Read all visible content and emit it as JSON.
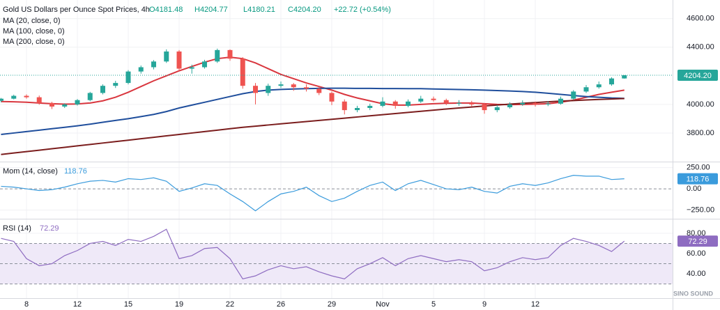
{
  "chart_data": [
    {
      "type": "candlestick",
      "title": "Gold US Dollars per Ounce Spot Prices, 4h",
      "ohlc_legend": [
        "O4181.48",
        "H4204.77",
        "L4180.21",
        "C4204.20",
        "+22.72 (+0.54%)"
      ],
      "categories": [
        null,
        null,
        "8",
        null,
        null,
        null,
        "12",
        null,
        null,
        null,
        "15",
        null,
        null,
        null,
        "19",
        null,
        null,
        null,
        "22",
        null,
        null,
        null,
        "26",
        null,
        null,
        null,
        "29",
        null,
        null,
        null,
        "Nov",
        null,
        null,
        null,
        "5",
        null,
        null,
        null,
        "9",
        null,
        null,
        null,
        "12",
        null,
        null,
        null,
        null,
        null,
        null,
        null
      ],
      "open": [
        4025,
        4040,
        4060,
        4050,
        4010,
        3985,
        4000,
        4030,
        4080,
        4130,
        4150,
        4230,
        4260,
        4300,
        4370,
        4250,
        4260,
        4300,
        4380,
        4320,
        4130,
        4080,
        4130,
        4140,
        4120,
        4110,
        4080,
        4020,
        3960,
        3975,
        3990,
        4020,
        3990,
        4020,
        4040,
        4030,
        4010,
        4010,
        4000,
        3960,
        3980,
        4000,
        4010,
        4000,
        4005,
        4040,
        4090,
        4120,
        4140,
        4181.48
      ],
      "high": [
        4045,
        4068,
        4070,
        4062,
        4018,
        4008,
        4038,
        4088,
        4140,
        4165,
        4240,
        4272,
        4310,
        4385,
        4380,
        4278,
        4312,
        4390,
        4385,
        4330,
        4150,
        4145,
        4160,
        4150,
        4140,
        4125,
        4090,
        4035,
        3990,
        4005,
        4050,
        4030,
        4035,
        4060,
        4055,
        4040,
        4030,
        4025,
        4010,
        3995,
        4015,
        4028,
        4020,
        4022,
        4055,
        4100,
        4135,
        4160,
        4190,
        4204.77
      ],
      "low": [
        4015,
        4035,
        4040,
        3998,
        3968,
        3975,
        3992,
        4022,
        4070,
        4115,
        4140,
        4215,
        4245,
        4290,
        4235,
        4215,
        4250,
        4290,
        4305,
        4110,
        4000,
        4060,
        4115,
        4095,
        4090,
        4065,
        3995,
        3930,
        3945,
        3960,
        3980,
        3970,
        3980,
        4010,
        4020,
        3995,
        3990,
        3985,
        3935,
        3945,
        3970,
        3990,
        3985,
        3988,
        3998,
        4030,
        4080,
        4110,
        4130,
        4180.21
      ],
      "close": [
        4040,
        4060,
        4050,
        4010,
        3985,
        4000,
        4030,
        4080,
        4130,
        4150,
        4230,
        4260,
        4300,
        4370,
        4250,
        4260,
        4300,
        4380,
        4320,
        4130,
        4080,
        4130,
        4140,
        4120,
        4110,
        4080,
        4020,
        3960,
        3975,
        3990,
        4020,
        3990,
        4020,
        4040,
        4030,
        4010,
        4010,
        4000,
        3960,
        3980,
        4000,
        4010,
        4000,
        4005,
        4040,
        4090,
        4120,
        4140,
        4181.48,
        4204.2
      ],
      "up_color": "#26a69a",
      "down_color": "#ef5350",
      "series": [
        {
          "name": "MA (20, close, 0)",
          "color": "#d9363e",
          "values": [
            4020,
            4018,
            4015,
            4010,
            4005,
            4002,
            4003,
            4010,
            4025,
            4050,
            4085,
            4125,
            4165,
            4200,
            4235,
            4265,
            4295,
            4320,
            4330,
            4320,
            4290,
            4250,
            4210,
            4180,
            4150,
            4125,
            4100,
            4070,
            4045,
            4025,
            4005,
            3995,
            3995,
            4000,
            4005,
            4008,
            4010,
            4010,
            4005,
            4000,
            3998,
            4000,
            4002,
            4005,
            4015,
            4030,
            4050,
            4070,
            4085,
            4100
          ]
        },
        {
          "name": "MA (100, close, 0)",
          "color": "#1f4e9c",
          "values": [
            3790,
            3800,
            3810,
            3820,
            3830,
            3840,
            3850,
            3862,
            3875,
            3888,
            3900,
            3915,
            3930,
            3950,
            3975,
            3995,
            4015,
            4035,
            4055,
            4075,
            4090,
            4100,
            4105,
            4108,
            4110,
            4112,
            4113,
            4113,
            4112,
            4112,
            4111,
            4111,
            4110,
            4110,
            4108,
            4106,
            4104,
            4102,
            4100,
            4097,
            4094,
            4090,
            4085,
            4078,
            4070,
            4062,
            4055,
            4050,
            4045,
            4042
          ]
        },
        {
          "name": "MA (200, close, 0)",
          "color": "#7b1d1d",
          "values": [
            3650,
            3660,
            3670,
            3680,
            3690,
            3700,
            3710,
            3720,
            3730,
            3740,
            3750,
            3760,
            3770,
            3780,
            3790,
            3800,
            3810,
            3820,
            3830,
            3840,
            3848,
            3856,
            3864,
            3872,
            3880,
            3888,
            3896,
            3904,
            3912,
            3920,
            3928,
            3936,
            3944,
            3952,
            3960,
            3968,
            3975,
            3982,
            3989,
            3996,
            4002,
            4008,
            4013,
            4018,
            4023,
            4027,
            4031,
            4035,
            4038,
            4041
          ]
        }
      ],
      "ylim": [
        3600,
        4730
      ],
      "yticks": [
        {
          "value": 3800,
          "label": "3800.00"
        },
        {
          "value": 4000,
          "label": "4000.00"
        },
        {
          "value": 4400,
          "label": "4400.00"
        },
        {
          "value": 4600,
          "label": "4600.00"
        }
      ],
      "price_label": "4204.20",
      "grid": true
    },
    {
      "type": "line",
      "title": "Mom (14, close)",
      "value_label": "118.76",
      "color": "#3a9bdc",
      "values": [
        30,
        20,
        0,
        -20,
        -10,
        20,
        60,
        90,
        100,
        80,
        120,
        110,
        130,
        90,
        -30,
        10,
        60,
        40,
        -60,
        -150,
        -260,
        -150,
        -60,
        -30,
        20,
        -80,
        -150,
        -110,
        -30,
        40,
        80,
        -20,
        60,
        100,
        50,
        0,
        -10,
        20,
        -30,
        -50,
        30,
        60,
        40,
        70,
        120,
        160,
        150,
        150,
        110,
        118.76
      ],
      "ylim": [
        -345,
        305
      ],
      "yticks": [
        {
          "value": -250,
          "label": "−250.00"
        },
        {
          "value": 0,
          "label": "0.00"
        },
        {
          "value": 250,
          "label": "250.00"
        }
      ],
      "grid": true
    },
    {
      "type": "line",
      "title": "RSI (14)",
      "value_label": "72.29",
      "color": "#8e6cc1",
      "band_color": "#efe9f8",
      "values": [
        75,
        72,
        55,
        48,
        50,
        58,
        63,
        70,
        72,
        68,
        74,
        72,
        77,
        84,
        55,
        58,
        65,
        66,
        55,
        35,
        38,
        44,
        48,
        45,
        47,
        42,
        38,
        35,
        45,
        50,
        56,
        48,
        55,
        58,
        55,
        52,
        54,
        52,
        43,
        46,
        52,
        56,
        54,
        56,
        68,
        75,
        72,
        68,
        62,
        72.29
      ],
      "levels": [
        30,
        50,
        70
      ],
      "ylim": [
        16,
        93
      ],
      "yticks": [
        {
          "value": 40,
          "label": "40.00"
        },
        {
          "value": 60,
          "label": "60.00"
        },
        {
          "value": 80,
          "label": "80.00"
        }
      ],
      "grid": true
    }
  ],
  "watermark": "SINO SOUND"
}
